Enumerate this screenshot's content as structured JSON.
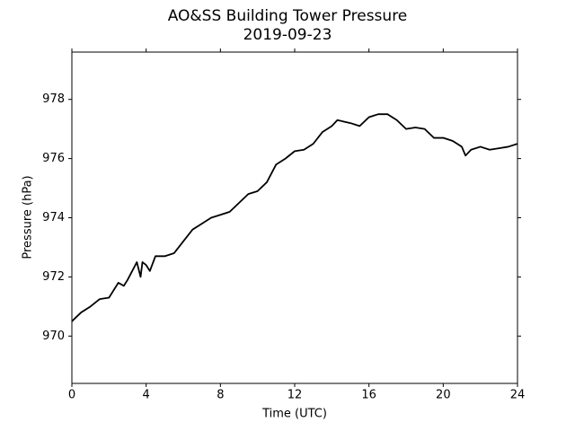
{
  "chart_data": {
    "type": "line",
    "title": "AO&SS Building Tower Pressure",
    "subtitle": "2019-09-23",
    "x_label": "Time (UTC)",
    "y_label": "Pressure (hPa)",
    "x": [
      0,
      0.5,
      1,
      1.5,
      2,
      2.5,
      2.8,
      3,
      3.5,
      3.7,
      3.8,
      4,
      4.2,
      4.5,
      5,
      5.5,
      6,
      6.5,
      7,
      7.5,
      8,
      8.5,
      9,
      9.5,
      10,
      10.5,
      11,
      11.5,
      12,
      12.5,
      13,
      13.5,
      14,
      14.3,
      15,
      15.5,
      16,
      16.5,
      17,
      17.5,
      18,
      18.5,
      19,
      19.5,
      20,
      20.5,
      21,
      21.2,
      21.5,
      22,
      22.5,
      23,
      23.5,
      24
    ],
    "series": [
      {
        "name": "Pressure",
        "color": "#000000",
        "values": [
          970.5,
          970.8,
          971.0,
          971.25,
          971.3,
          971.8,
          971.7,
          971.9,
          972.5,
          972.0,
          972.5,
          972.4,
          972.2,
          972.7,
          972.7,
          972.8,
          973.2,
          973.6,
          973.8,
          974.0,
          974.1,
          974.2,
          974.5,
          974.8,
          974.9,
          975.2,
          975.8,
          976.0,
          976.25,
          976.3,
          976.5,
          976.9,
          977.1,
          977.3,
          977.2,
          977.1,
          977.4,
          977.5,
          977.5,
          977.3,
          977.0,
          977.05,
          977.0,
          976.7,
          976.7,
          976.6,
          976.4,
          976.1,
          976.3,
          976.4,
          976.3,
          976.35,
          976.4,
          976.5
        ]
      }
    ],
    "xlim": [
      0,
      24
    ],
    "xticks": [
      0,
      4,
      8,
      12,
      16,
      20,
      24
    ],
    "ylim": [
      968.4,
      979.6
    ],
    "yticks": [
      970,
      972,
      974,
      976,
      978
    ],
    "grid": false
  }
}
